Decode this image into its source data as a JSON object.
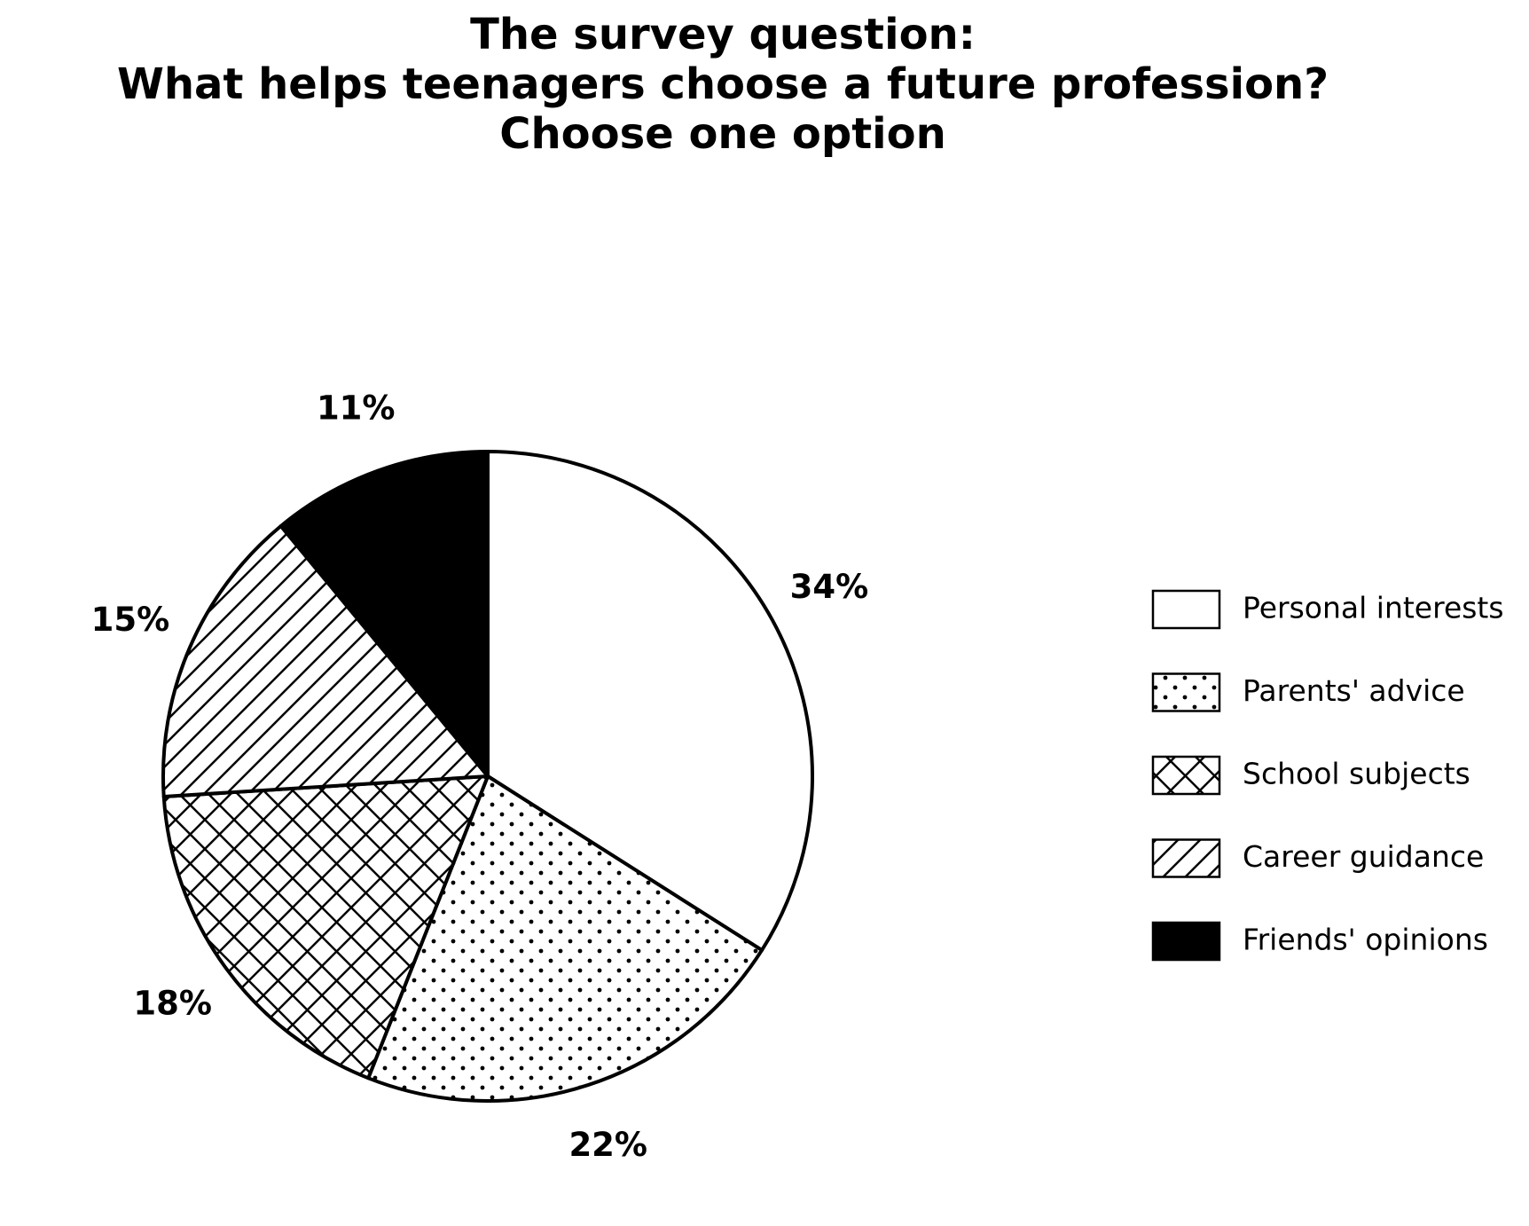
{
  "chart_data": {
    "type": "pie",
    "title": "The survey question:\nWhat helps teenagers choose a future profession?\nChoose one option",
    "categories": [
      "Personal interests",
      "Parents' advice",
      "School subjects",
      "Career guidance",
      "Friends' opinions"
    ],
    "values": [
      34,
      22,
      18,
      15,
      11
    ],
    "value_labels": [
      "34%",
      "22%",
      "18%",
      "15%",
      "11%"
    ],
    "colors": [
      "#ffffff",
      "#ffffff",
      "#ffffff",
      "#ffffff",
      "#000000"
    ],
    "hatches": [
      "",
      ".",
      "x",
      "/",
      ""
    ],
    "legend": "right"
  }
}
